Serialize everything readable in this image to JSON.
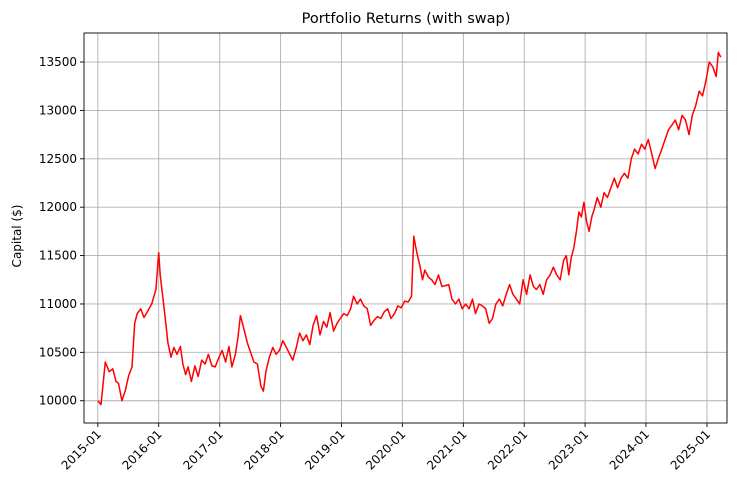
{
  "chart_data": {
    "type": "line",
    "title": "Portfolio Returns (with swap)",
    "xlabel": "",
    "ylabel": "Capital ($)",
    "grid": true,
    "x_ticks": [
      "2015-01",
      "2016-01",
      "2017-01",
      "2018-01",
      "2019-01",
      "2020-01",
      "2021-01",
      "2022-01",
      "2023-01",
      "2024-01",
      "2025-01"
    ],
    "y_ticks": [
      10000,
      10500,
      11000,
      11500,
      12000,
      12500,
      13000,
      13500
    ],
    "xlim": [
      "2014-10-10",
      "2025-05-01"
    ],
    "ylim": [
      9770,
      13800
    ],
    "series": [
      {
        "name": "",
        "color": "#ff0000",
        "x": [
          "2015-01-01",
          "2015-01-20",
          "2015-02-15",
          "2015-03-10",
          "2015-04-01",
          "2015-04-20",
          "2015-05-05",
          "2015-05-25",
          "2015-06-15",
          "2015-07-05",
          "2015-07-25",
          "2015-08-10",
          "2015-08-25",
          "2015-09-15",
          "2015-10-05",
          "2015-10-25",
          "2015-11-20",
          "2015-12-15",
          "2016-01-01",
          "2016-01-10",
          "2016-01-20",
          "2016-02-05",
          "2016-02-25",
          "2016-03-15",
          "2016-04-01",
          "2016-04-20",
          "2016-05-10",
          "2016-05-25",
          "2016-06-10",
          "2016-06-25",
          "2016-07-15",
          "2016-08-05",
          "2016-08-25",
          "2016-09-15",
          "2016-10-05",
          "2016-10-25",
          "2016-11-15",
          "2016-12-05",
          "2016-12-25",
          "2017-01-15",
          "2017-02-05",
          "2017-02-25",
          "2017-03-15",
          "2017-04-05",
          "2017-04-20",
          "2017-05-05",
          "2017-05-25",
          "2017-06-15",
          "2017-07-05",
          "2017-07-25",
          "2017-08-15",
          "2017-09-05",
          "2017-09-20",
          "2017-10-05",
          "2017-10-25",
          "2017-11-15",
          "2017-12-05",
          "2017-12-25",
          "2018-01-15",
          "2018-02-05",
          "2018-02-25",
          "2018-03-15",
          "2018-04-05",
          "2018-04-25",
          "2018-05-15",
          "2018-06-05",
          "2018-06-25",
          "2018-07-15",
          "2018-08-05",
          "2018-08-25",
          "2018-09-15",
          "2018-10-05",
          "2018-10-25",
          "2018-11-15",
          "2018-12-05",
          "2018-12-25",
          "2019-01-15",
          "2019-02-05",
          "2019-02-25",
          "2019-03-15",
          "2019-04-05",
          "2019-04-25",
          "2019-05-15",
          "2019-06-05",
          "2019-06-25",
          "2019-07-15",
          "2019-08-05",
          "2019-08-25",
          "2019-09-15",
          "2019-10-05",
          "2019-10-25",
          "2019-11-15",
          "2019-12-05",
          "2019-12-25",
          "2020-01-15",
          "2020-02-05",
          "2020-02-25",
          "2020-03-10",
          "2020-03-20",
          "2020-04-01",
          "2020-04-15",
          "2020-05-01",
          "2020-05-15",
          "2020-06-05",
          "2020-06-25",
          "2020-07-15",
          "2020-08-05",
          "2020-08-25",
          "2020-09-15",
          "2020-10-05",
          "2020-10-25",
          "2020-11-15",
          "2020-12-05",
          "2020-12-25",
          "2021-01-15",
          "2021-02-05",
          "2021-02-25",
          "2021-03-15",
          "2021-04-05",
          "2021-04-25",
          "2021-05-15",
          "2021-06-05",
          "2021-06-25",
          "2021-07-15",
          "2021-08-05",
          "2021-08-25",
          "2021-09-15",
          "2021-10-05",
          "2021-10-25",
          "2021-11-15",
          "2021-12-05",
          "2021-12-25",
          "2022-01-15",
          "2022-02-05",
          "2022-02-25",
          "2022-03-15",
          "2022-04-05",
          "2022-04-25",
          "2022-05-15",
          "2022-06-05",
          "2022-06-25",
          "2022-07-15",
          "2022-08-05",
          "2022-08-25",
          "2022-09-10",
          "2022-09-25",
          "2022-10-10",
          "2022-10-25",
          "2022-11-10",
          "2022-11-25",
          "2022-12-10",
          "2022-12-25",
          "2023-01-10",
          "2023-01-25",
          "2023-02-10",
          "2023-02-25",
          "2023-03-15",
          "2023-04-05",
          "2023-04-25",
          "2023-05-15",
          "2023-06-05",
          "2023-06-25",
          "2023-07-15",
          "2023-08-05",
          "2023-08-25",
          "2023-09-15",
          "2023-10-05",
          "2023-10-25",
          "2023-11-15",
          "2023-12-05",
          "2023-12-25",
          "2024-01-15",
          "2024-02-05",
          "2024-02-25",
          "2024-03-15",
          "2024-04-05",
          "2024-04-25",
          "2024-05-15",
          "2024-06-05",
          "2024-06-25",
          "2024-07-15",
          "2024-08-05",
          "2024-08-25",
          "2024-09-15",
          "2024-10-05",
          "2024-10-25",
          "2024-11-15",
          "2024-12-05",
          "2024-12-25",
          "2025-01-15",
          "2025-02-05",
          "2025-02-25",
          "2025-03-10",
          "2025-03-25"
        ],
        "y": [
          10000,
          9960,
          10400,
          10300,
          10330,
          10200,
          10180,
          10000,
          10110,
          10260,
          10350,
          10800,
          10900,
          10950,
          10860,
          10920,
          11000,
          11150,
          11530,
          11300,
          11150,
          10920,
          10600,
          10450,
          10550,
          10480,
          10560,
          10380,
          10270,
          10350,
          10200,
          10360,
          10250,
          10420,
          10380,
          10480,
          10360,
          10350,
          10440,
          10520,
          10400,
          10560,
          10350,
          10480,
          10650,
          10880,
          10750,
          10600,
          10500,
          10400,
          10380,
          10150,
          10100,
          10300,
          10450,
          10550,
          10480,
          10520,
          10620,
          10550,
          10480,
          10420,
          10550,
          10700,
          10620,
          10680,
          10580,
          10780,
          10880,
          10680,
          10820,
          10760,
          10910,
          10720,
          10800,
          10850,
          10900,
          10880,
          10950,
          11080,
          11000,
          11050,
          10980,
          10950,
          10780,
          10830,
          10870,
          10850,
          10920,
          10950,
          10850,
          10900,
          10980,
          10960,
          11030,
          11020,
          11080,
          11700,
          11600,
          11500,
          11400,
          11250,
          11350,
          11280,
          11250,
          11200,
          11300,
          11180,
          11190,
          11200,
          11050,
          11000,
          11050,
          10950,
          11000,
          10950,
          11050,
          10900,
          11000,
          10980,
          10950,
          10800,
          10850,
          11000,
          11050,
          10980,
          11100,
          11200,
          11100,
          11050,
          11000,
          11250,
          11100,
          11300,
          11180,
          11150,
          11200,
          11100,
          11250,
          11300,
          11380,
          11300,
          11250,
          11450,
          11500,
          11300,
          11480,
          11580,
          11750,
          11950,
          11900,
          12050,
          11850,
          11750,
          11900,
          11980,
          12100,
          12000,
          12150,
          12100,
          12200,
          12300,
          12200,
          12300,
          12350,
          12300,
          12500,
          12600,
          12550,
          12650,
          12600,
          12700,
          12550,
          12400,
          12500,
          12600,
          12700,
          12800,
          12850,
          12900,
          12800,
          12950,
          12900,
          12750,
          12950,
          13050,
          13200,
          13150,
          13300,
          13500,
          13450,
          13350,
          13600,
          13550
        ]
      }
    ]
  }
}
